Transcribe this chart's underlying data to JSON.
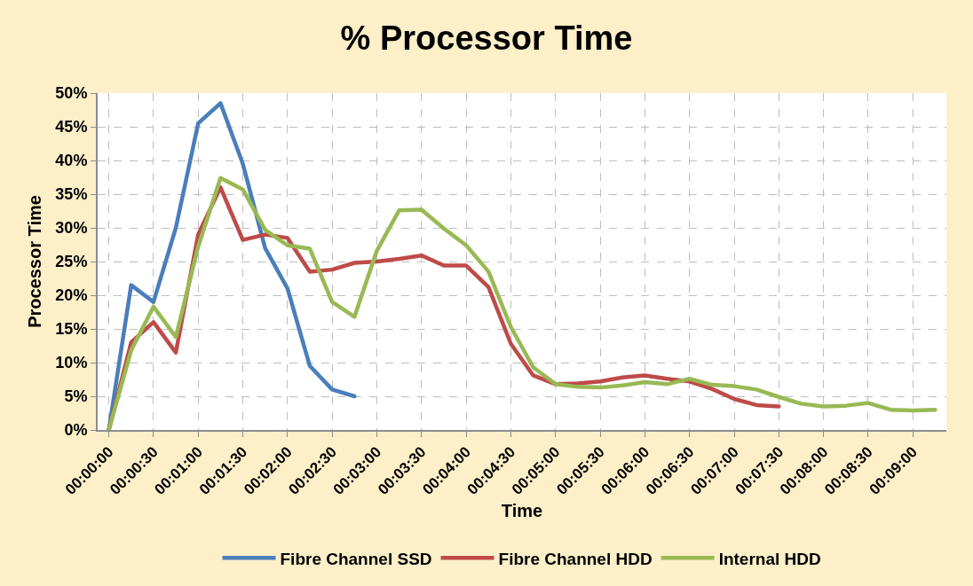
{
  "chart_data": {
    "type": "line",
    "title": "% Processor Time",
    "xlabel": "Time",
    "ylabel": "Processor Time",
    "categories": [
      "00:00:00",
      null,
      "00:00:30",
      null,
      "00:01:00",
      null,
      "00:01:30",
      null,
      "00:02:00",
      null,
      "00:02:30",
      null,
      "00:03:00",
      null,
      "00:03:30",
      null,
      "00:04:00",
      null,
      "00:04:30",
      null,
      "00:05:00",
      null,
      "00:05:30",
      null,
      "00:06:00",
      null,
      "00:06:30",
      null,
      "00:07:00",
      null,
      "00:07:30",
      null,
      "00:08:00",
      null,
      "00:08:30",
      null,
      "00:09:00",
      null
    ],
    "series": [
      {
        "name": "Fibre Channel SSD",
        "color": "#4a7ebb",
        "values": [
          0,
          21.5,
          19,
          30,
          45.5,
          48.5,
          39.5,
          27,
          21,
          9.5,
          6,
          5,
          null,
          null,
          null,
          null,
          null,
          null,
          null,
          null,
          null,
          null,
          null,
          null,
          null,
          null,
          null,
          null,
          null,
          null,
          null,
          null,
          null,
          null,
          null,
          null,
          null,
          null
        ]
      },
      {
        "name": "Fibre Channel HDD",
        "color": "#be4b48",
        "values": [
          0,
          13,
          16,
          11.5,
          29,
          36,
          28.2,
          29,
          28.5,
          23.5,
          23.8,
          24.8,
          25.0,
          25.4,
          25.9,
          24.4,
          24.4,
          21.2,
          12.8,
          8.1,
          6.8,
          6.9,
          7.2,
          7.8,
          8.1,
          7.6,
          7.2,
          6.1,
          4.6,
          3.7,
          3.5,
          null,
          null,
          null,
          null,
          null,
          null,
          null
        ]
      },
      {
        "name": "Internal HDD",
        "color": "#98b954",
        "values": [
          0,
          11.8,
          18.3,
          13.8,
          27.2,
          37.4,
          35.7,
          29.7,
          27.4,
          26.9,
          19.0,
          16.8,
          26.6,
          32.6,
          32.7,
          29.9,
          27.4,
          23.5,
          15.3,
          9.3,
          6.8,
          6.4,
          6.3,
          6.6,
          7.1,
          6.8,
          7.6,
          6.7,
          6.5,
          6.0,
          4.9,
          3.9,
          3.5,
          3.6,
          4.0,
          3.0,
          2.9,
          3.0
        ]
      }
    ],
    "ylim": [
      0,
      50
    ],
    "yticks": [
      {
        "value": 0,
        "label": "0%"
      },
      {
        "value": 5,
        "label": "5%"
      },
      {
        "value": 10,
        "label": "10%"
      },
      {
        "value": 15,
        "label": "15%"
      },
      {
        "value": 20,
        "label": "20%"
      },
      {
        "value": 25,
        "label": "25%"
      },
      {
        "value": 30,
        "label": "30%"
      },
      {
        "value": 35,
        "label": "35%"
      },
      {
        "value": 40,
        "label": "40%"
      },
      {
        "value": 45,
        "label": "45%"
      },
      {
        "value": 50,
        "label": "50%"
      }
    ],
    "grid": true,
    "legend": "bottom",
    "marker": "none",
    "line_style": "solid"
  }
}
